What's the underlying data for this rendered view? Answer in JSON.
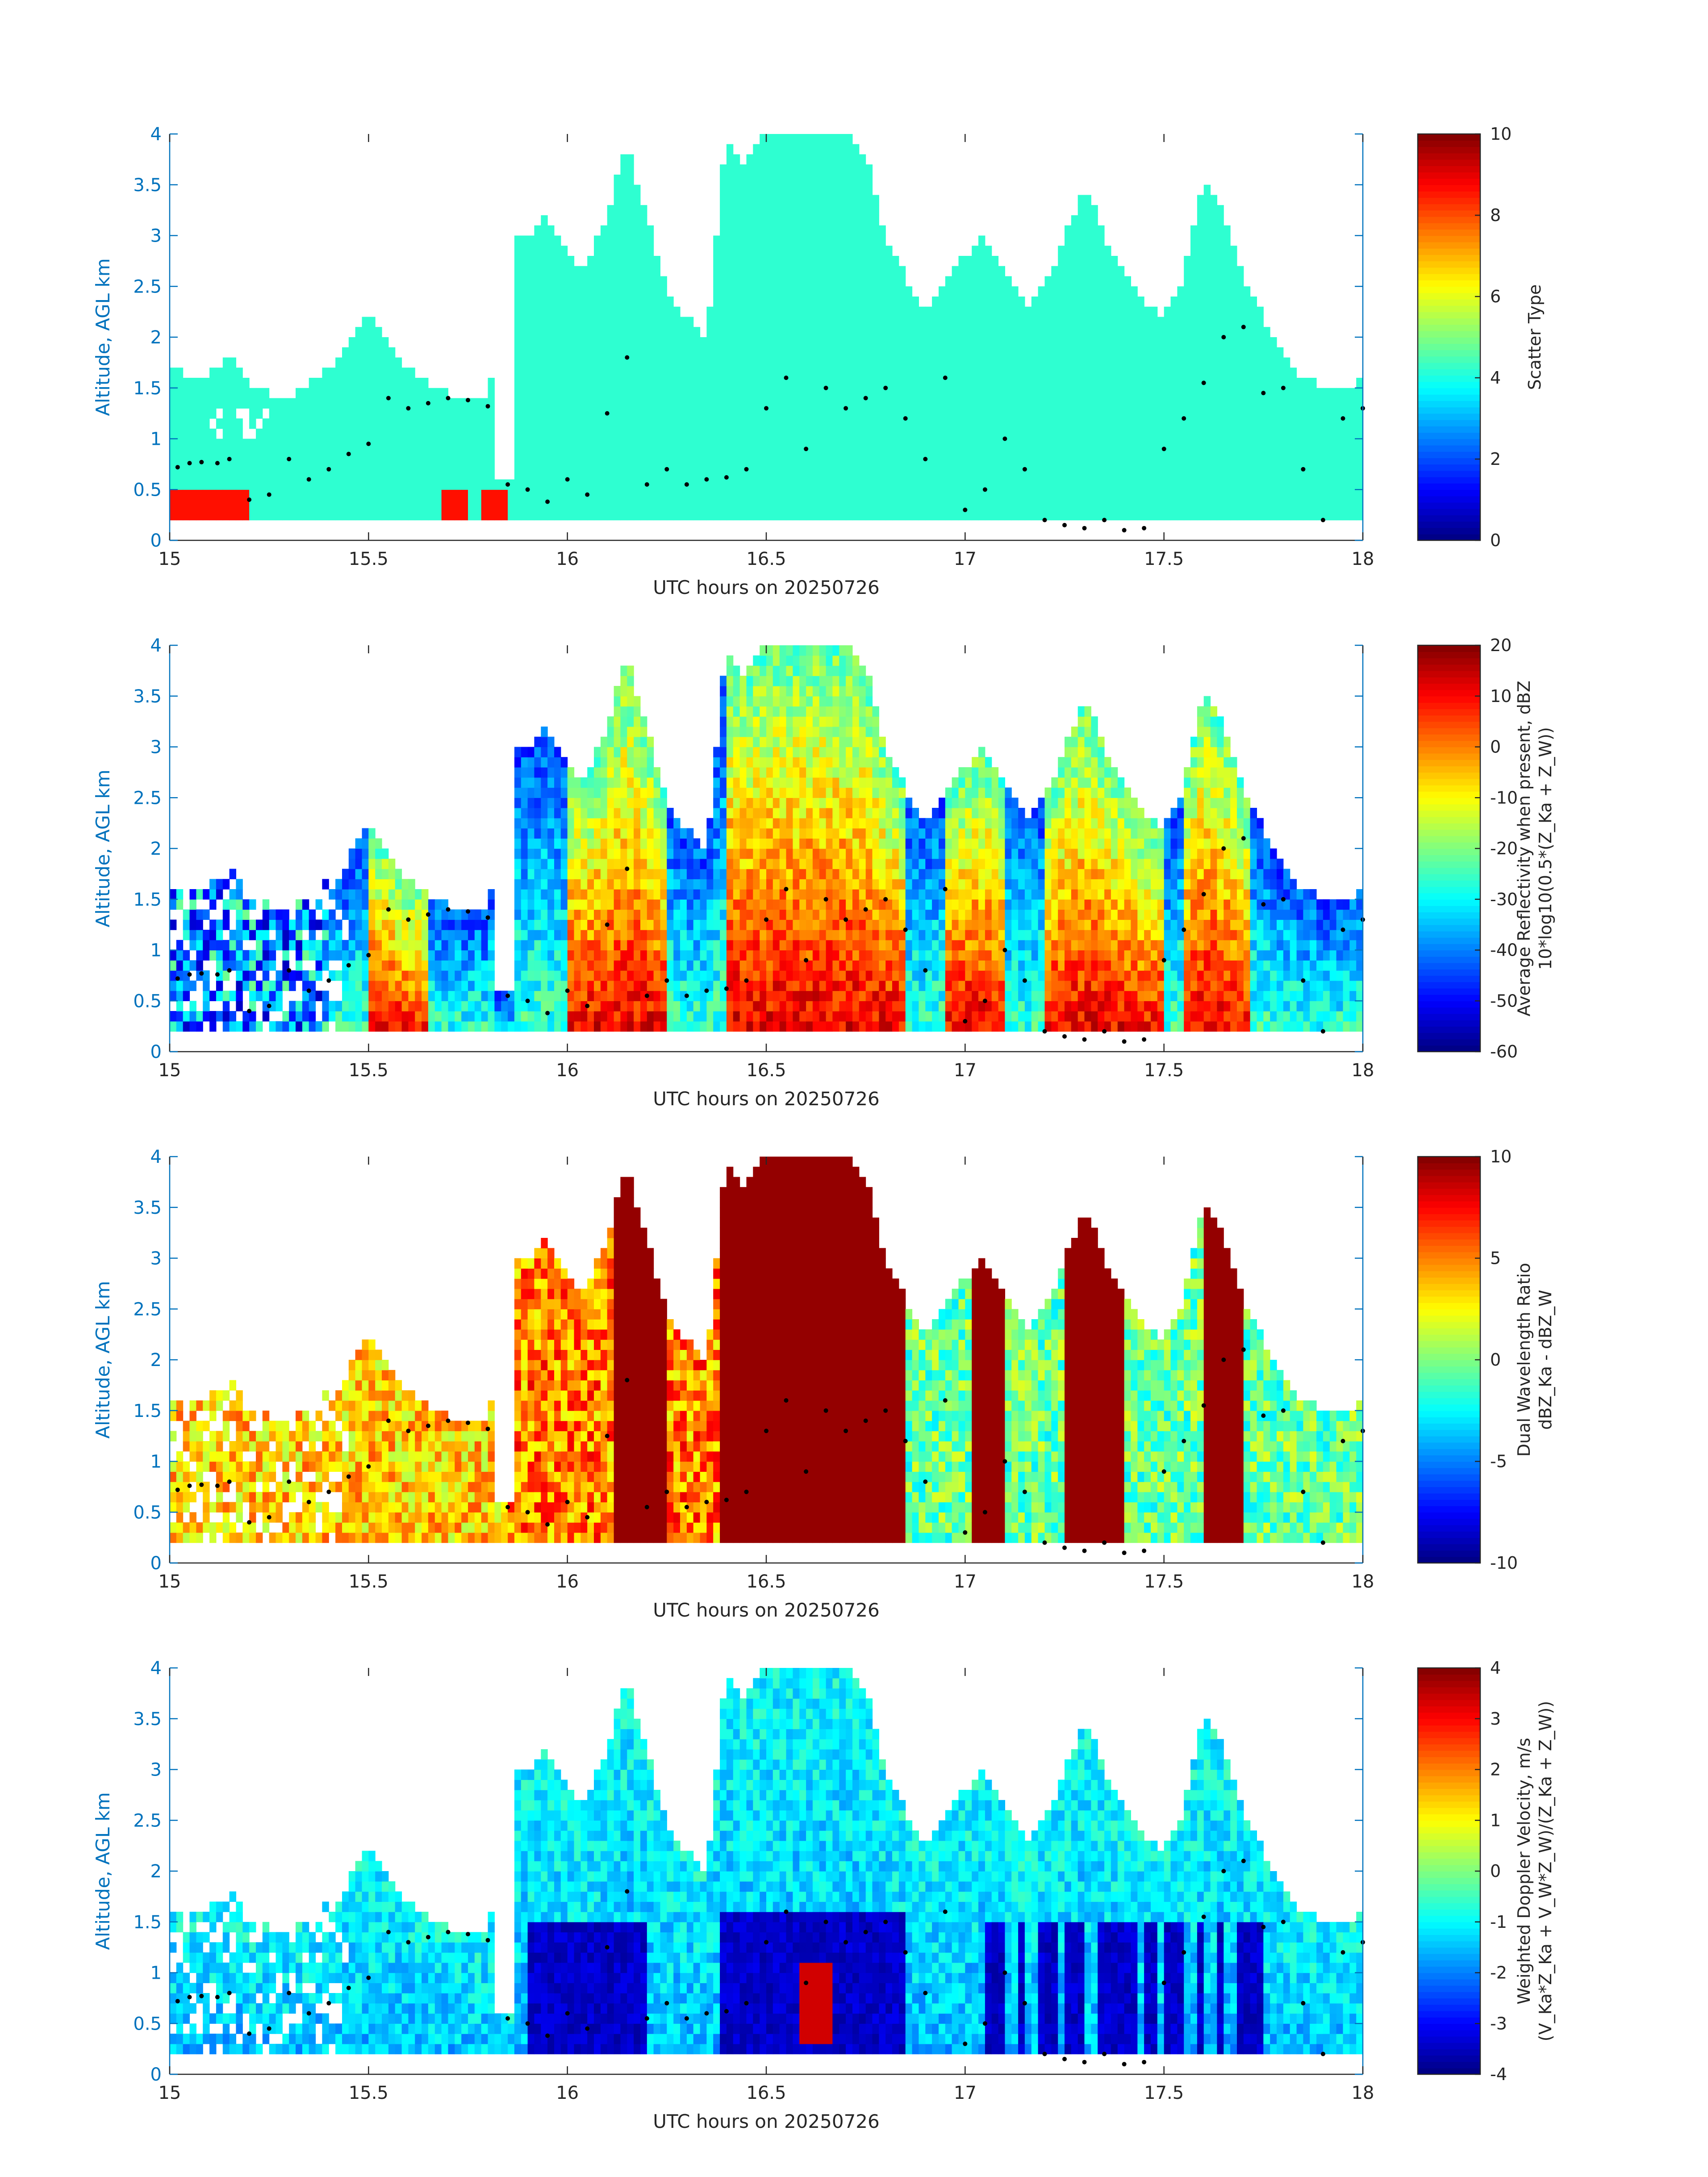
{
  "chart_data": [
    {
      "type": "heatmap",
      "xlabel": "UTC hours on 20250726",
      "ylabel": "Altitude, AGL km",
      "x_ticks": [
        "15",
        "15.5",
        "16",
        "16.5",
        "17",
        "17.5",
        "18"
      ],
      "y_ticks": [
        "0",
        "0.5",
        "1",
        "1.5",
        "2",
        "2.5",
        "3",
        "3.5",
        "4"
      ],
      "xlim": [
        15,
        18
      ],
      "ylim": [
        0,
        4
      ],
      "colorbar": {
        "label_lines": [
          "Scatter Type"
        ],
        "range": [
          0,
          10
        ],
        "ticks": [
          "0",
          "2",
          "4",
          "6",
          "8",
          "10"
        ],
        "colormap": "jet"
      },
      "field": "scatter_type"
    },
    {
      "type": "heatmap",
      "xlabel": "UTC hours on 20250726",
      "ylabel": "Altitude, AGL km",
      "x_ticks": [
        "15",
        "15.5",
        "16",
        "16.5",
        "17",
        "17.5",
        "18"
      ],
      "y_ticks": [
        "0",
        "0.5",
        "1",
        "1.5",
        "2",
        "2.5",
        "3",
        "3.5",
        "4"
      ],
      "xlim": [
        15,
        18
      ],
      "ylim": [
        0,
        4
      ],
      "colorbar": {
        "label_lines": [
          "Average Reflectivity when present, dBZ",
          "10*log10(0.5*(Z_Ka + Z_W))"
        ],
        "range": [
          -60,
          20
        ],
        "ticks": [
          "-60",
          "-50",
          "-40",
          "-30",
          "-20",
          "-10",
          "0",
          "10",
          "20"
        ],
        "colormap": "jet"
      },
      "field": "reflectivity"
    },
    {
      "type": "heatmap",
      "xlabel": "UTC hours on 20250726",
      "ylabel": "Altitude, AGL km",
      "x_ticks": [
        "15",
        "15.5",
        "16",
        "16.5",
        "17",
        "17.5",
        "18"
      ],
      "y_ticks": [
        "0",
        "0.5",
        "1",
        "1.5",
        "2",
        "2.5",
        "3",
        "3.5",
        "4"
      ],
      "xlim": [
        15,
        18
      ],
      "ylim": [
        0,
        4
      ],
      "colorbar": {
        "label_lines": [
          "Dual Wavelength Ratio",
          "dBZ_Ka - dBZ_W"
        ],
        "range": [
          -10,
          10
        ],
        "ticks": [
          "-10",
          "-5",
          "0",
          "5",
          "10"
        ],
        "colormap": "jet"
      },
      "field": "dwr"
    },
    {
      "type": "heatmap",
      "xlabel": "UTC hours on 20250726",
      "ylabel": "Altitude, AGL km",
      "x_ticks": [
        "15",
        "15.5",
        "16",
        "16.5",
        "17",
        "17.5",
        "18"
      ],
      "y_ticks": [
        "0",
        "0.5",
        "1",
        "1.5",
        "2",
        "2.5",
        "3",
        "3.5",
        "4"
      ],
      "xlim": [
        15,
        18
      ],
      "ylim": [
        0,
        4
      ],
      "colorbar": {
        "label_lines": [
          "Weighted Doppler Velocity, m/s",
          "(V_Ka*Z_Ka + V_W*Z_W)/(Z_Ka + Z_W))"
        ],
        "range": [
          -4,
          4
        ],
        "ticks": [
          "-4",
          "-3",
          "-2",
          "-1",
          "0",
          "1",
          "2",
          "3",
          "4"
        ],
        "colormap": "jet"
      },
      "field": "velocity"
    }
  ],
  "cloud_top_km": [
    [
      15.0,
      1.75
    ],
    [
      15.05,
      1.6
    ],
    [
      15.1,
      1.65
    ],
    [
      15.15,
      1.8
    ],
    [
      15.2,
      1.55
    ],
    [
      15.25,
      1.45
    ],
    [
      15.3,
      1.4
    ],
    [
      15.35,
      1.55
    ],
    [
      15.4,
      1.7
    ],
    [
      15.45,
      1.9
    ],
    [
      15.5,
      2.2
    ],
    [
      15.55,
      2.0
    ],
    [
      15.6,
      1.7
    ],
    [
      15.65,
      1.55
    ],
    [
      15.7,
      1.45
    ],
    [
      15.75,
      1.4
    ],
    [
      15.8,
      1.35
    ],
    [
      15.85,
      3.1
    ],
    [
      15.9,
      3.0
    ],
    [
      15.95,
      3.2
    ],
    [
      16.0,
      2.8
    ],
    [
      16.05,
      2.7
    ],
    [
      16.1,
      3.2
    ],
    [
      16.15,
      3.9
    ],
    [
      16.2,
      3.2
    ],
    [
      16.25,
      2.5
    ],
    [
      16.3,
      2.2
    ],
    [
      16.35,
      2.0
    ],
    [
      16.4,
      4.0
    ],
    [
      16.45,
      3.7
    ],
    [
      16.5,
      4.0
    ],
    [
      16.55,
      4.0
    ],
    [
      16.6,
      4.0
    ],
    [
      16.65,
      4.0
    ],
    [
      16.7,
      4.0
    ],
    [
      16.75,
      3.8
    ],
    [
      16.8,
      3.0
    ],
    [
      16.85,
      2.6
    ],
    [
      16.9,
      2.3
    ],
    [
      16.95,
      2.6
    ],
    [
      17.0,
      2.8
    ],
    [
      17.05,
      3.0
    ],
    [
      17.1,
      2.6
    ],
    [
      17.15,
      2.3
    ],
    [
      17.2,
      2.5
    ],
    [
      17.25,
      3.0
    ],
    [
      17.3,
      3.5
    ],
    [
      17.35,
      3.0
    ],
    [
      17.4,
      2.6
    ],
    [
      17.45,
      2.3
    ],
    [
      17.5,
      2.2
    ],
    [
      17.55,
      2.6
    ],
    [
      17.6,
      3.6
    ],
    [
      17.65,
      3.2
    ],
    [
      17.7,
      2.6
    ],
    [
      17.75,
      2.2
    ],
    [
      17.8,
      1.8
    ],
    [
      17.85,
      1.6
    ],
    [
      17.9,
      1.5
    ],
    [
      17.95,
      1.5
    ],
    [
      18.0,
      1.6
    ]
  ],
  "dots_km": [
    [
      15.02,
      0.72
    ],
    [
      15.05,
      0.76
    ],
    [
      15.08,
      0.77
    ],
    [
      15.12,
      0.76
    ],
    [
      15.15,
      0.8
    ],
    [
      15.2,
      0.4
    ],
    [
      15.25,
      0.45
    ],
    [
      15.3,
      0.8
    ],
    [
      15.35,
      0.6
    ],
    [
      15.4,
      0.7
    ],
    [
      15.45,
      0.85
    ],
    [
      15.5,
      0.95
    ],
    [
      15.55,
      1.4
    ],
    [
      15.6,
      1.3
    ],
    [
      15.65,
      1.35
    ],
    [
      15.7,
      1.4
    ],
    [
      15.75,
      1.38
    ],
    [
      15.8,
      1.32
    ],
    [
      15.85,
      0.55
    ],
    [
      15.9,
      0.5
    ],
    [
      15.95,
      0.38
    ],
    [
      16.0,
      0.6
    ],
    [
      16.05,
      0.45
    ],
    [
      16.1,
      1.25
    ],
    [
      16.15,
      1.8
    ],
    [
      16.2,
      0.55
    ],
    [
      16.25,
      0.7
    ],
    [
      16.3,
      0.55
    ],
    [
      16.35,
      0.6
    ],
    [
      16.4,
      0.62
    ],
    [
      16.45,
      0.7
    ],
    [
      16.5,
      1.3
    ],
    [
      16.55,
      1.6
    ],
    [
      16.6,
      0.9
    ],
    [
      16.65,
      1.5
    ],
    [
      16.7,
      1.3
    ],
    [
      16.75,
      1.4
    ],
    [
      16.8,
      1.5
    ],
    [
      16.85,
      1.2
    ],
    [
      16.9,
      0.8
    ],
    [
      16.95,
      1.6
    ],
    [
      17.0,
      0.3
    ],
    [
      17.05,
      0.5
    ],
    [
      17.1,
      1.0
    ],
    [
      17.15,
      0.7
    ],
    [
      17.2,
      0.2
    ],
    [
      17.25,
      0.15
    ],
    [
      17.3,
      0.12
    ],
    [
      17.35,
      0.2
    ],
    [
      17.4,
      0.1
    ],
    [
      17.45,
      0.12
    ],
    [
      17.5,
      0.9
    ],
    [
      17.55,
      1.2
    ],
    [
      17.6,
      1.55
    ],
    [
      17.65,
      2.0
    ],
    [
      17.7,
      2.1
    ],
    [
      17.75,
      1.45
    ],
    [
      17.8,
      1.5
    ],
    [
      17.85,
      0.7
    ],
    [
      17.9,
      0.2
    ],
    [
      17.95,
      1.2
    ],
    [
      18.0,
      1.3
    ]
  ]
}
